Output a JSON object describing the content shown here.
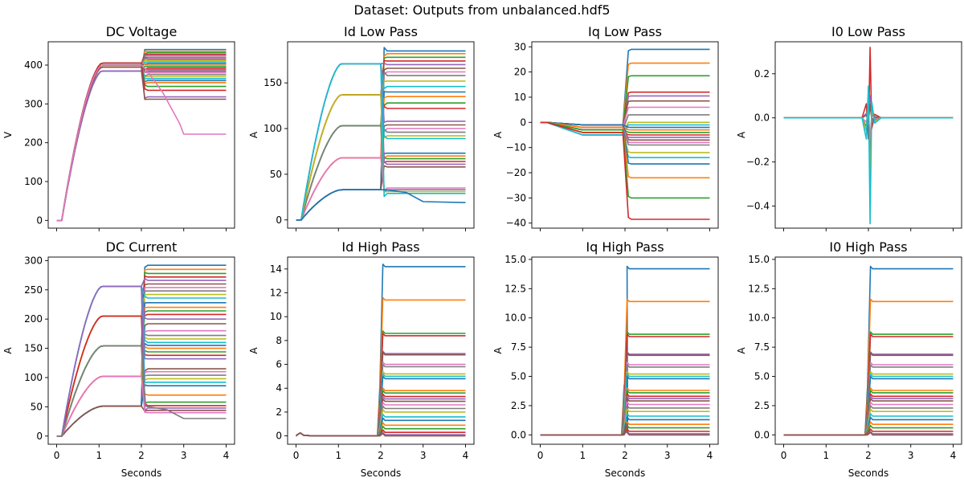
{
  "figure": {
    "suptitle": "Dataset: Outputs from unbalanced.hdf5"
  },
  "palette": [
    "#1f77b4",
    "#ff7f0e",
    "#2ca02c",
    "#d62728",
    "#9467bd",
    "#8c564b",
    "#e377c2",
    "#7f7f7f",
    "#bcbd22",
    "#17becf"
  ],
  "chart_data": [
    {
      "type": "line",
      "title": "DC Voltage",
      "xlabel": "",
      "ylabel": "V",
      "xlim": [
        -0.2,
        4.2
      ],
      "ylim": [
        -20,
        460
      ],
      "xticks": [
        0,
        1,
        2,
        3,
        4
      ],
      "yticks": [
        0,
        100,
        200,
        300,
        400
      ],
      "ytick_labels": [
        "0",
        "100",
        "200",
        "300",
        "400"
      ],
      "show_xticklabels": false,
      "grid": false,
      "series_note_values": {
        "ramp_levels": [
          385,
          395,
          400,
          405
        ],
        "final_levels": [
          440,
          435,
          432,
          428,
          425,
          420,
          418,
          415,
          412,
          408,
          404,
          400,
          396,
          392,
          388,
          384,
          380,
          375,
          370,
          365,
          360,
          355,
          345,
          335,
          318,
          312,
          222
        ]
      }
    },
    {
      "type": "line",
      "title": "Id Low Pass",
      "xlabel": "",
      "ylabel": "A",
      "xlim": [
        -0.2,
        4.2
      ],
      "ylim": [
        -9,
        195
      ],
      "xticks": [
        0,
        1,
        2,
        3,
        4
      ],
      "yticks": [
        0,
        50,
        100,
        150
      ],
      "ytick_labels": [
        "0",
        "50",
        "100",
        "150"
      ],
      "show_xticklabels": false,
      "grid": false,
      "series_note_values": {
        "ramp_levels": [
          33,
          68,
          103,
          137,
          171
        ],
        "final_levels": [
          185,
          182,
          178,
          174,
          170,
          166,
          162,
          158,
          152,
          146,
          140,
          135,
          128,
          122,
          108,
          104,
          100,
          96,
          92,
          89,
          73,
          70,
          67,
          64,
          61,
          58,
          35,
          33,
          31,
          29,
          19
        ]
      }
    },
    {
      "type": "line",
      "title": "Iq Low Pass",
      "xlabel": "",
      "ylabel": "A",
      "xlim": [
        -0.2,
        4.2
      ],
      "ylim": [
        -42,
        32
      ],
      "xticks": [
        0,
        1,
        2,
        3,
        4
      ],
      "yticks": [
        -40,
        -30,
        -20,
        -10,
        0,
        10,
        20,
        30
      ],
      "ytick_labels": [
        "−40",
        "−30",
        "−20",
        "−10",
        "0",
        "10",
        "20",
        "30"
      ],
      "show_xticklabels": false,
      "grid": false,
      "series_note_values": {
        "ramp_levels": [
          -1,
          -2,
          -3,
          -4,
          -5
        ],
        "final_levels": [
          29,
          23.5,
          18.5,
          12,
          10.5,
          8.5,
          6,
          3,
          0,
          -1,
          -2,
          -3,
          -4,
          -5,
          -6,
          -7,
          -8,
          -9,
          -12,
          -14,
          -16.5,
          -22,
          -30,
          -38.5
        ]
      }
    },
    {
      "type": "line",
      "title": "I0 Low Pass",
      "xlabel": "",
      "ylabel": "A",
      "xlim": [
        -0.2,
        4.2
      ],
      "ylim": [
        -0.5,
        0.345
      ],
      "xticks": [
        0,
        1,
        2,
        3,
        4
      ],
      "yticks": [
        -0.4,
        -0.2,
        0.0,
        0.2
      ],
      "ytick_labels": [
        "−0.4",
        "−0.2",
        "0.0",
        "0.2"
      ],
      "show_xticklabels": false,
      "grid": false,
      "series_note_values": {
        "spike_peaks": [
          0.32,
          0.1,
          0.06,
          -0.1,
          -0.2,
          -0.3,
          -0.48
        ]
      }
    },
    {
      "type": "line",
      "title": "DC Current",
      "xlabel": "Seconds",
      "ylabel": "A",
      "xlim": [
        -0.2,
        4.2
      ],
      "ylim": [
        -14,
        306
      ],
      "xticks": [
        0,
        1,
        2,
        3,
        4
      ],
      "xtick_labels": [
        "0",
        "1",
        "2",
        "3",
        "4"
      ],
      "yticks": [
        0,
        50,
        100,
        150,
        200,
        250,
        300
      ],
      "ytick_labels": [
        "0",
        "50",
        "100",
        "150",
        "200",
        "250",
        "300"
      ],
      "show_xticklabels": true,
      "grid": false,
      "series_note_values": {
        "ramp_levels": [
          51,
          102,
          154,
          205,
          256
        ],
        "final_levels": [
          292,
          285,
          278,
          272,
          266,
          260,
          254,
          248,
          242,
          236,
          228,
          220,
          214,
          208,
          200,
          192,
          180,
          172,
          166,
          160,
          155,
          150,
          144,
          138,
          132,
          115,
          110,
          104,
          98,
          92,
          86,
          70,
          58,
          52,
          48,
          44,
          40,
          30
        ]
      }
    },
    {
      "type": "line",
      "title": "Id High Pass",
      "xlabel": "Seconds",
      "ylabel": "A",
      "xlim": [
        -0.2,
        4.2
      ],
      "ylim": [
        -0.7,
        15.0
      ],
      "xticks": [
        0,
        1,
        2,
        3,
        4
      ],
      "xtick_labels": [
        "0",
        "1",
        "2",
        "3",
        "4"
      ],
      "yticks": [
        0,
        2,
        4,
        6,
        8,
        10,
        12,
        14
      ],
      "ytick_labels": [
        "0",
        "2",
        "4",
        "6",
        "8",
        "10",
        "12",
        "14"
      ],
      "show_xticklabels": true,
      "grid": false,
      "series_note_values": {
        "final_levels": [
          14.2,
          11.4,
          8.6,
          8.4,
          6.9,
          6.8,
          6.0,
          5.8,
          5.2,
          5.0,
          4.8,
          3.8,
          3.6,
          3.3,
          3.1,
          2.9,
          2.6,
          2.3,
          2.0,
          1.6,
          1.3,
          0.9,
          0.6,
          0.3,
          0.1,
          0.0
        ]
      }
    },
    {
      "type": "line",
      "title": "Iq High Pass",
      "xlabel": "Seconds",
      "ylabel": "A",
      "xlim": [
        -0.2,
        4.2
      ],
      "ylim": [
        -0.8,
        15.2
      ],
      "xticks": [
        0,
        1,
        2,
        3,
        4
      ],
      "xtick_labels": [
        "0",
        "1",
        "2",
        "3",
        "4"
      ],
      "yticks": [
        0.0,
        2.5,
        5.0,
        7.5,
        10.0,
        12.5,
        15.0
      ],
      "ytick_labels": [
        "0.0",
        "2.5",
        "5.0",
        "7.5",
        "10.0",
        "12.5",
        "15.0"
      ],
      "show_xticklabels": true,
      "grid": false,
      "series_note_values": {
        "final_levels": [
          14.2,
          11.4,
          8.6,
          8.4,
          6.9,
          6.8,
          6.0,
          5.8,
          5.2,
          5.0,
          4.8,
          3.8,
          3.6,
          3.3,
          3.1,
          2.9,
          2.6,
          2.3,
          2.0,
          1.6,
          1.3,
          0.9,
          0.6,
          0.3,
          0.1,
          0.0
        ]
      }
    },
    {
      "type": "line",
      "title": "I0 High Pass",
      "xlabel": "Seconds",
      "ylabel": "A",
      "xlim": [
        -0.2,
        4.2
      ],
      "ylim": [
        -0.8,
        15.2
      ],
      "xticks": [
        0,
        1,
        2,
        3,
        4
      ],
      "xtick_labels": [
        "0",
        "1",
        "2",
        "3",
        "4"
      ],
      "yticks": [
        0.0,
        2.5,
        5.0,
        7.5,
        10.0,
        12.5,
        15.0
      ],
      "ytick_labels": [
        "0.0",
        "2.5",
        "5.0",
        "7.5",
        "10.0",
        "12.5",
        "15.0"
      ],
      "show_xticklabels": true,
      "grid": false,
      "series_note_values": {
        "final_levels": [
          14.2,
          11.4,
          8.6,
          8.4,
          6.9,
          6.8,
          6.0,
          5.8,
          5.2,
          5.0,
          4.8,
          3.8,
          3.6,
          3.3,
          3.1,
          2.9,
          2.6,
          2.3,
          2.0,
          1.6,
          1.3,
          0.9,
          0.6,
          0.3,
          0.1,
          0.0
        ]
      }
    }
  ]
}
